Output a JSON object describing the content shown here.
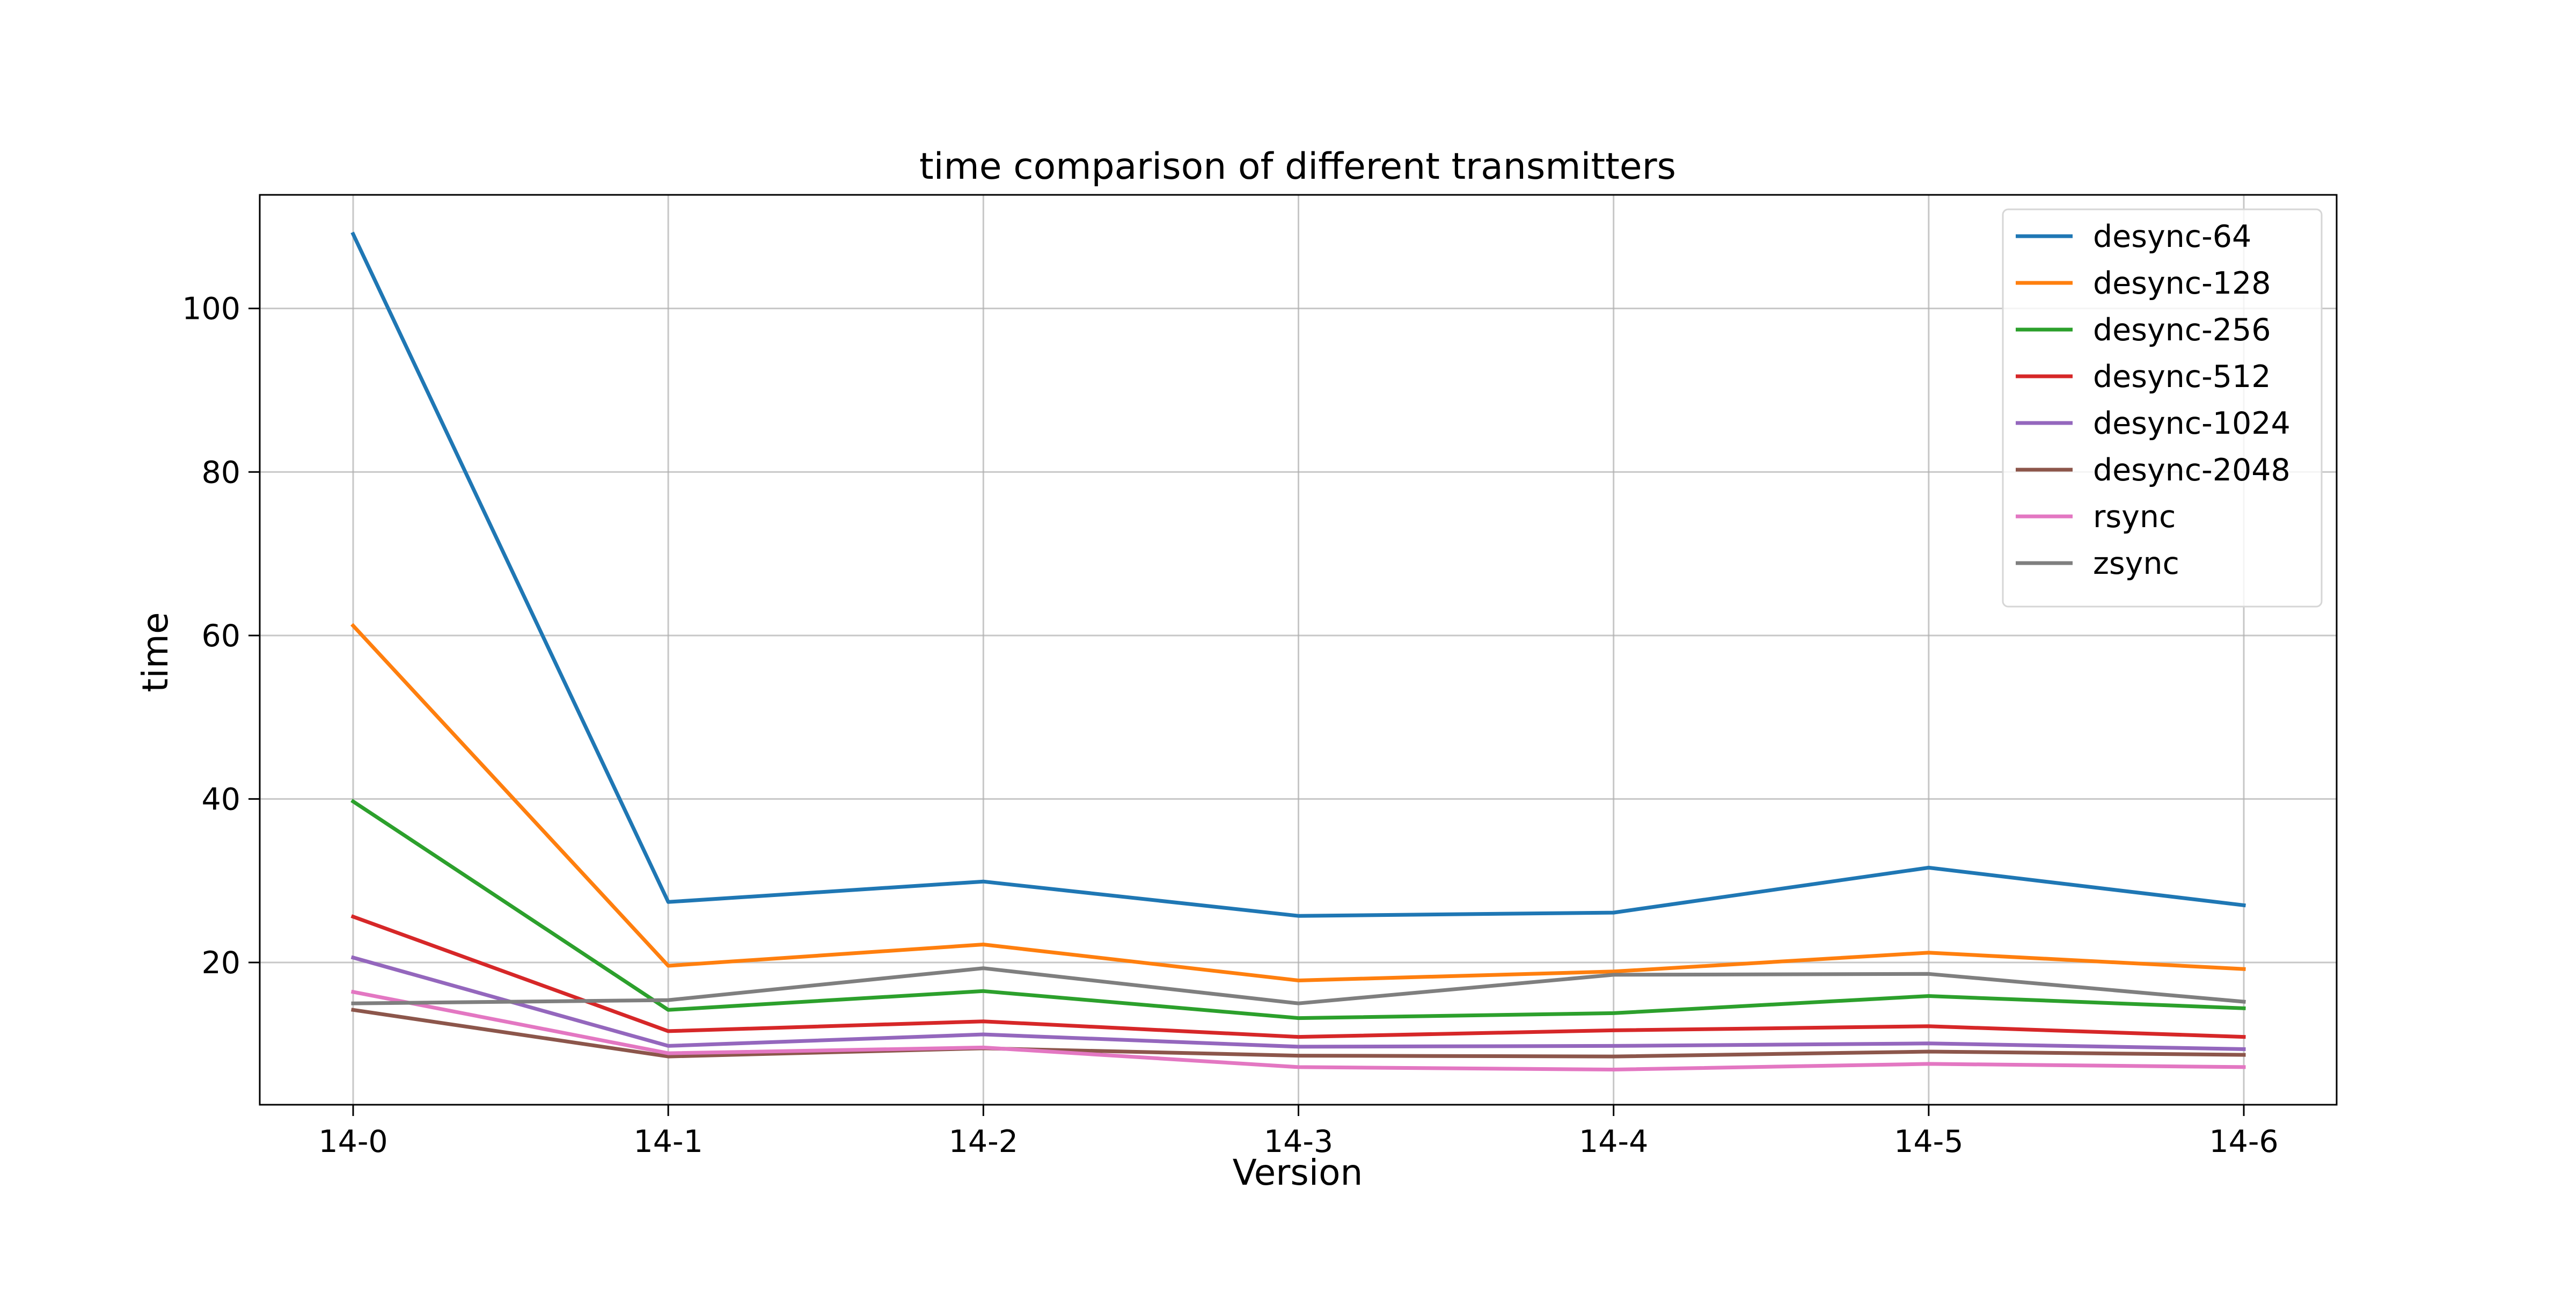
{
  "chart_data": {
    "type": "line",
    "title": "time comparison of different transmitters",
    "xlabel": "Version",
    "ylabel": "time",
    "categories": [
      "14-0",
      "14-1",
      "14-2",
      "14-3",
      "14-4",
      "14-5",
      "14-6"
    ],
    "ylim": [
      2.6,
      113.9
    ],
    "yticks": [
      20,
      40,
      60,
      80,
      100
    ],
    "grid": true,
    "legend_position": "top-right",
    "series": [
      {
        "name": "desync-64",
        "color": "#1f77b4",
        "values": [
          109.1,
          27.4,
          29.9,
          25.7,
          26.1,
          31.6,
          27.0
        ]
      },
      {
        "name": "desync-128",
        "color": "#ff7f0e",
        "values": [
          61.2,
          19.6,
          22.2,
          17.8,
          18.9,
          21.2,
          19.2
        ]
      },
      {
        "name": "desync-256",
        "color": "#2ca02c",
        "values": [
          39.7,
          14.2,
          16.5,
          13.2,
          13.8,
          15.9,
          14.4
        ]
      },
      {
        "name": "desync-512",
        "color": "#d62728",
        "values": [
          25.6,
          11.6,
          12.8,
          10.9,
          11.7,
          12.2,
          10.9
        ]
      },
      {
        "name": "desync-1024",
        "color": "#9467bd",
        "values": [
          20.6,
          9.8,
          11.2,
          9.7,
          9.8,
          10.1,
          9.4
        ]
      },
      {
        "name": "desync-2048",
        "color": "#8c564b",
        "values": [
          14.2,
          8.5,
          9.5,
          8.6,
          8.5,
          9.1,
          8.7
        ]
      },
      {
        "name": "rsync",
        "color": "#e377c2",
        "values": [
          16.4,
          8.9,
          9.6,
          7.2,
          6.9,
          7.6,
          7.2
        ]
      },
      {
        "name": "zsync",
        "color": "#7f7f7f",
        "values": [
          15.0,
          15.4,
          19.3,
          15.0,
          18.5,
          18.6,
          15.2
        ]
      }
    ]
  }
}
